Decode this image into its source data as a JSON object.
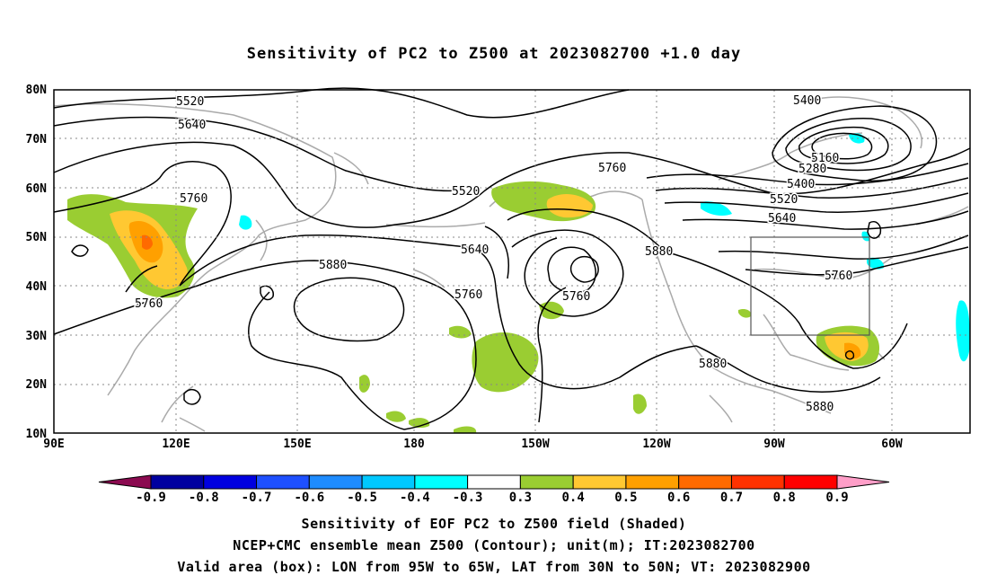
{
  "title": "Sensitivity of PC2 to Z500 at 2023082700 +1.0 day",
  "axes": {
    "lat_labels": [
      "80N",
      "70N",
      "60N",
      "50N",
      "40N",
      "30N",
      "20N",
      "10N"
    ],
    "lon_labels": [
      "90E",
      "120E",
      "150E",
      "180",
      "150W",
      "120W",
      "90W",
      "60W"
    ]
  },
  "contour_labels": [
    "5520",
    "5640",
    "5760",
    "5880",
    "5400",
    "5160",
    "5280"
  ],
  "valid_box": {
    "lon": [
      "95W",
      "65W"
    ],
    "lat": [
      "30N",
      "50N"
    ]
  },
  "colorbar": {
    "labels": [
      "-0.9",
      "-0.8",
      "-0.7",
      "-0.6",
      "-0.5",
      "-0.4",
      "-0.3",
      "0.3",
      "0.4",
      "0.5",
      "0.6",
      "0.7",
      "0.8",
      "0.9"
    ],
    "colors": [
      "#8b0a50",
      "#0000a0",
      "#0000e0",
      "#1e50ff",
      "#1e8cff",
      "#00c8ff",
      "#00ffff",
      "#ffffff",
      "#9acd32",
      "#ffc832",
      "#ffa000",
      "#ff6a00",
      "#ff3200",
      "#ff0000",
      "#ff9ec8"
    ]
  },
  "captions": {
    "line1": "Sensitivity of EOF PC2 to Z500 field (Shaded)",
    "line2": "NCEP+CMC ensemble mean Z500 (Contour); unit(m); IT:2023082700",
    "line3": "Valid area (box): LON from 95W to 65W, LAT from 30N to 50N; VT: 2023082900"
  }
}
